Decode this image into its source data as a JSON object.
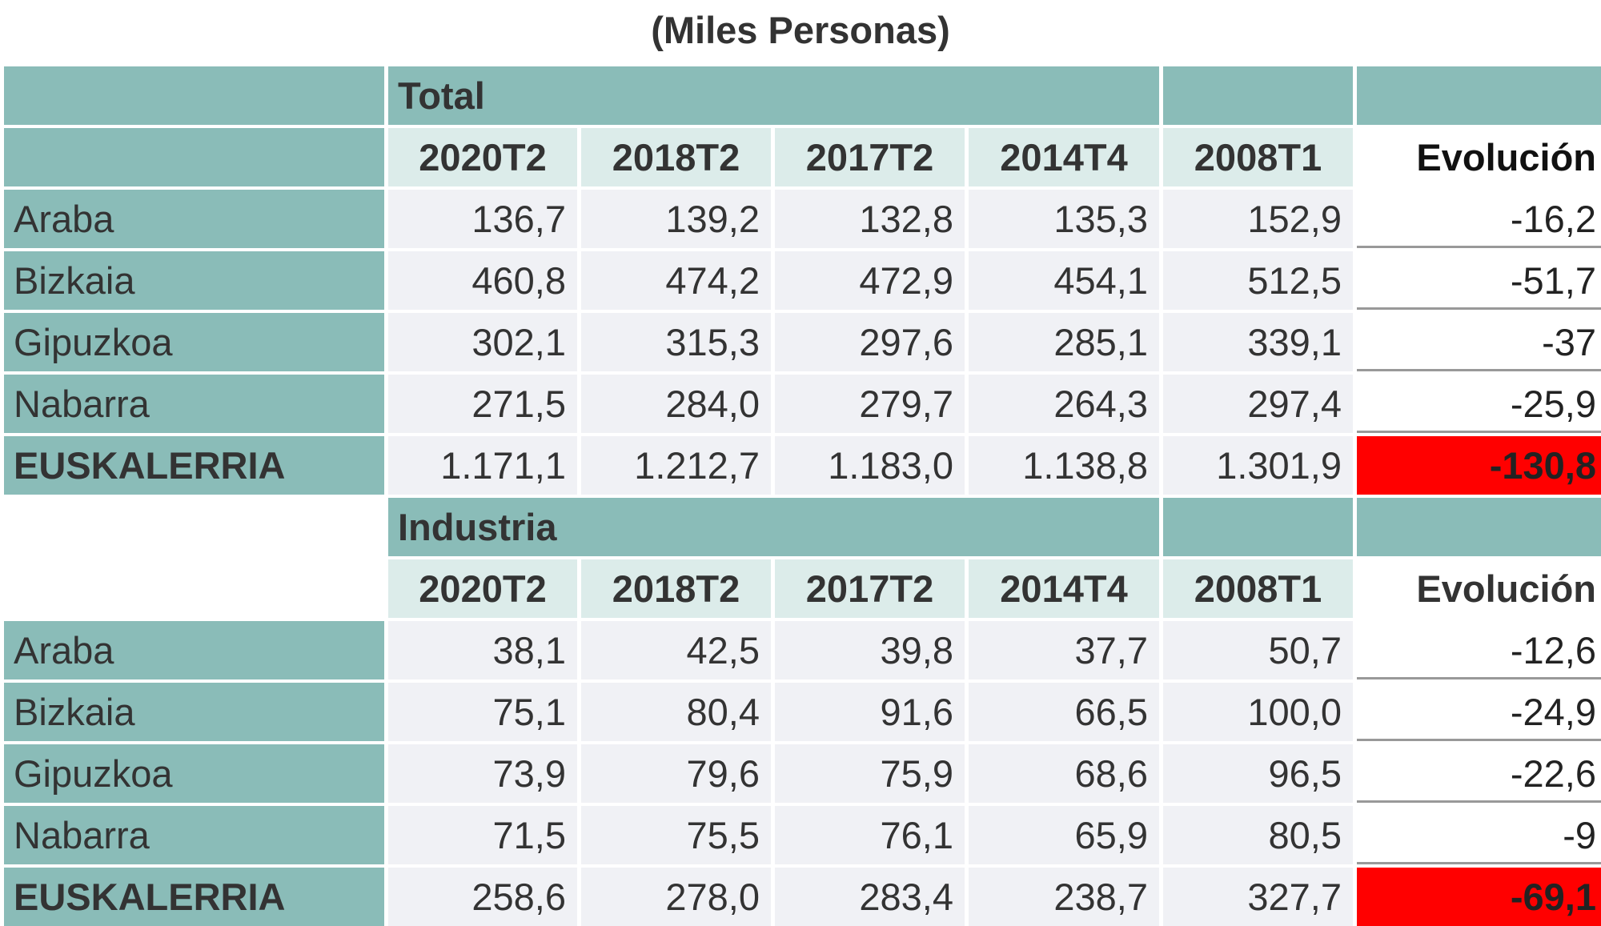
{
  "title": "(Miles Personas)",
  "sections": [
    {
      "name": "Total",
      "columns": [
        "2020T2",
        "2018T2",
        "2017T2",
        "2014T4",
        "2008T1"
      ],
      "evolution_header": "Evolución",
      "rows": [
        {
          "label": "Araba",
          "values": [
            "136,7",
            "139,2",
            "132,8",
            "135,3",
            "152,9"
          ],
          "evolution": "-16,2"
        },
        {
          "label": "Bizkaia",
          "values": [
            "460,8",
            "474,2",
            "472,9",
            "454,1",
            "512,5"
          ],
          "evolution": "-51,7"
        },
        {
          "label": "Gipuzkoa",
          "values": [
            "302,1",
            "315,3",
            "297,6",
            "285,1",
            "339,1"
          ],
          "evolution": "-37"
        },
        {
          "label": "Nabarra",
          "values": [
            "271,5",
            "284,0",
            "279,7",
            "264,3",
            "297,4"
          ],
          "evolution": "-25,9"
        },
        {
          "label": "EUSKALERRIA",
          "values": [
            "1.171,1",
            "1.212,7",
            "1.183,0",
            "1.138,8",
            "1.301,9"
          ],
          "evolution": "-130,8"
        }
      ]
    },
    {
      "name": "Industria",
      "columns": [
        "2020T2",
        "2018T2",
        "2017T2",
        "2014T4",
        "2008T1"
      ],
      "evolution_header": "Evolución",
      "rows": [
        {
          "label": "Araba",
          "values": [
            "38,1",
            "42,5",
            "39,8",
            "37,7",
            "50,7"
          ],
          "evolution": "-12,6"
        },
        {
          "label": "Bizkaia",
          "values": [
            "75,1",
            "80,4",
            "91,6",
            "66,5",
            "100,0"
          ],
          "evolution": "-24,9"
        },
        {
          "label": "Gipuzkoa",
          "values": [
            "73,9",
            "79,6",
            "75,9",
            "68,6",
            "96,5"
          ],
          "evolution": "-22,6"
        },
        {
          "label": "Nabarra",
          "values": [
            "71,5",
            "75,5",
            "76,1",
            "65,9",
            "80,5"
          ],
          "evolution": "-9"
        },
        {
          "label": "EUSKALERRIA",
          "values": [
            "258,6",
            "278,0",
            "283,4",
            "238,7",
            "327,7"
          ],
          "evolution": "-69,1"
        }
      ]
    }
  ]
}
